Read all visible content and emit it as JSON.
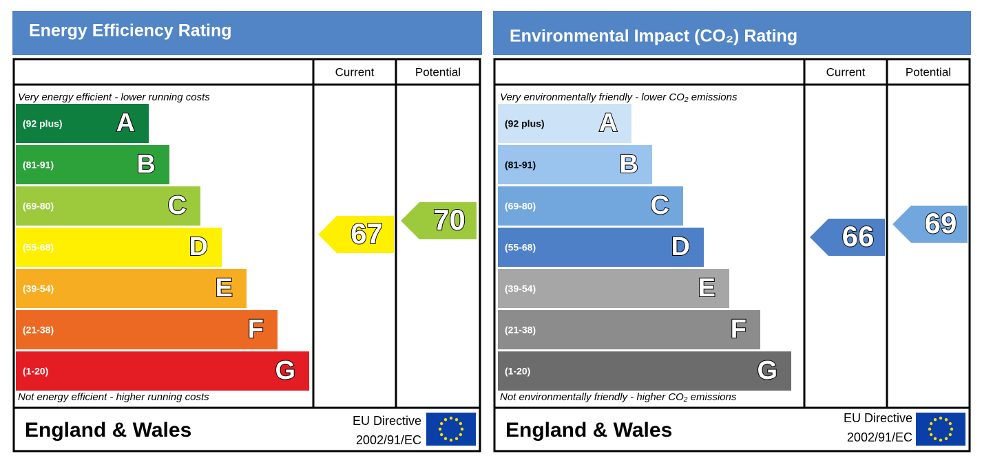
{
  "panels": [
    {
      "title": "Energy Efficiency Rating",
      "header": {
        "current": "Current",
        "potential": "Potential"
      },
      "top_note": "Very energy efficient - lower running costs",
      "bottom_note": "Not energy efficient - higher running costs",
      "bands": [
        {
          "range": "(92 plus)",
          "letter": "A"
        },
        {
          "range": "(81-91)",
          "letter": "B"
        },
        {
          "range": "(69-80)",
          "letter": "C"
        },
        {
          "range": "(55-68)",
          "letter": "D"
        },
        {
          "range": "(39-54)",
          "letter": "E"
        },
        {
          "range": "(21-38)",
          "letter": "F"
        },
        {
          "range": "(1-20)",
          "letter": "G"
        }
      ],
      "current": "67",
      "potential": "70",
      "footer": {
        "region": "England & Wales",
        "directive": "EU Directive",
        "code": "2002/91/EC"
      }
    },
    {
      "title": "Environmental Impact (CO₂) Rating",
      "header": {
        "current": "Current",
        "potential": "Potential"
      },
      "top_note": "Very environmentally friendly - lower CO₂ emissions",
      "bottom_note": "Not environmentally friendly - higher CO₂ emissions",
      "bands": [
        {
          "range": "(92 plus)",
          "letter": "A"
        },
        {
          "range": "(81-91)",
          "letter": "B"
        },
        {
          "range": "(69-80)",
          "letter": "C"
        },
        {
          "range": "(55-68)",
          "letter": "D"
        },
        {
          "range": "(39-54)",
          "letter": "E"
        },
        {
          "range": "(21-38)",
          "letter": "F"
        },
        {
          "range": "(1-20)",
          "letter": "G"
        }
      ],
      "current": "66",
      "potential": "69",
      "footer": {
        "region": "England & Wales",
        "directive": "EU Directive",
        "code": "2002/91/EC"
      }
    }
  ]
}
